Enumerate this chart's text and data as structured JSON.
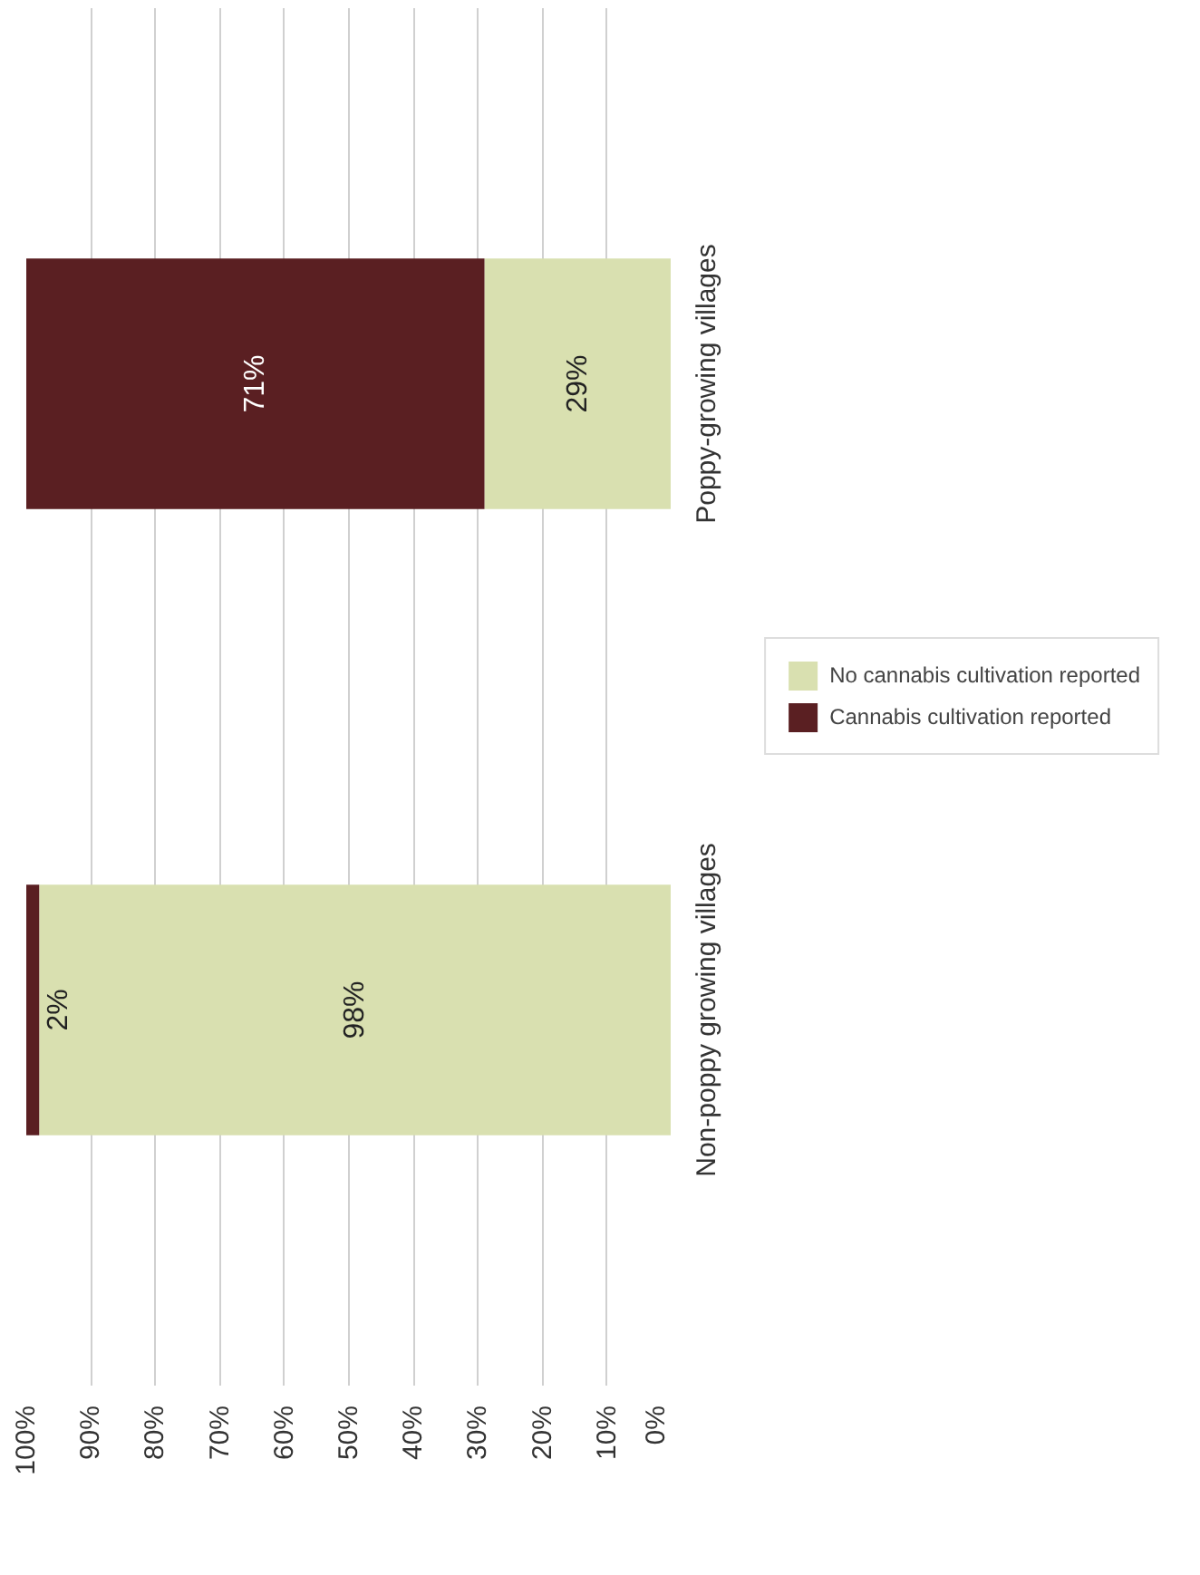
{
  "chart_data": {
    "type": "bar",
    "orientation": "horizontal",
    "stacked": true,
    "categories": [
      "Poppy-growing villages",
      "Non-poppy growing villages"
    ],
    "series": [
      {
        "name": "No cannabis cultivation reported",
        "color": "#d9e0b0",
        "values": [
          29,
          98
        ],
        "value_labels": [
          "29%",
          "98%"
        ]
      },
      {
        "name": "Cannabis cultivation reported",
        "color": "#5a1f22",
        "values": [
          71,
          2
        ],
        "value_labels": [
          "71%",
          "2%"
        ]
      }
    ],
    "xlim": [
      100,
      0
    ],
    "xticks": [
      {
        "value": 0,
        "label": "0%"
      },
      {
        "value": 10,
        "label": "10%"
      },
      {
        "value": 20,
        "label": "20%"
      },
      {
        "value": 30,
        "label": "30%"
      },
      {
        "value": 40,
        "label": "40%"
      },
      {
        "value": 50,
        "label": "50%"
      },
      {
        "value": 60,
        "label": "60%"
      },
      {
        "value": 70,
        "label": "70%"
      },
      {
        "value": 80,
        "label": "80%"
      },
      {
        "value": 90,
        "label": "90%"
      },
      {
        "value": 100,
        "label": "100%"
      }
    ],
    "grid": "x",
    "legend": "right"
  }
}
